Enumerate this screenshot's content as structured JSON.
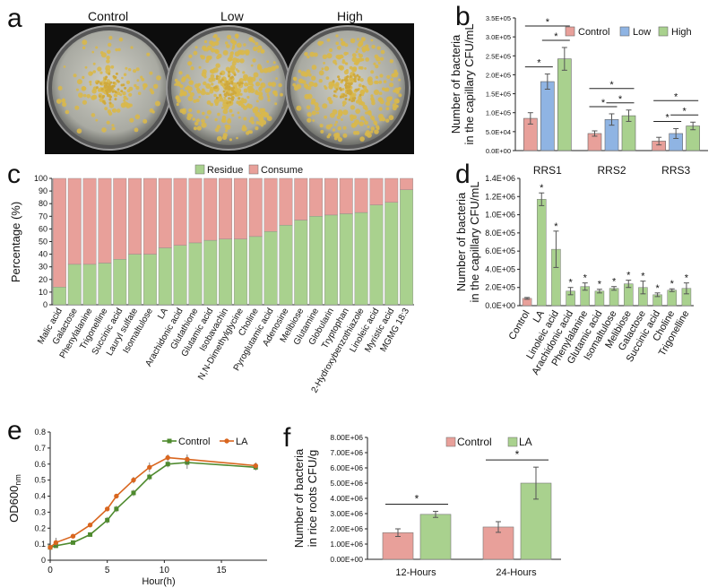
{
  "panels": {
    "a": "a",
    "b": "b",
    "c": "c",
    "d": "d",
    "e": "e",
    "f": "f"
  },
  "plates": {
    "labels": [
      "Control",
      "Low",
      "High"
    ]
  },
  "colors": {
    "control": "#e8a09a",
    "low": "#8fb4e3",
    "high": "#a9d18e",
    "residue": "#a9d18e",
    "consume": "#e8a09a",
    "line_control": "#4e8a2e",
    "line_la": "#d9661f"
  },
  "chart_data": [
    {
      "id": "b",
      "type": "bar",
      "ylabel": "Number of bacteria\nin the capillary CFU/mL",
      "categories": [
        "RRS1",
        "RRS2",
        "RRS3"
      ],
      "yticks": [
        "0.0E+00",
        "5.0E+04",
        "1.0E+05",
        "1.5E+05",
        "2.0E+05",
        "2.5E+05",
        "3.0E+05",
        "3.5E+05"
      ],
      "ylim": [
        0,
        350000
      ],
      "legend_position": "top-right",
      "series": [
        {
          "name": "Control",
          "values": [
            85000,
            45000,
            25000
          ],
          "errors": [
            15000,
            7000,
            10000
          ]
        },
        {
          "name": "Low",
          "values": [
            182000,
            82000,
            45000
          ],
          "errors": [
            20000,
            15000,
            13000
          ]
        },
        {
          "name": "High",
          "values": [
            242000,
            92000,
            65000
          ],
          "errors": [
            30000,
            15000,
            10000
          ]
        }
      ],
      "annotations": [
        "*",
        "*",
        "*",
        "*",
        "*",
        "*",
        "*",
        "*",
        "*"
      ]
    },
    {
      "id": "c",
      "type": "bar",
      "stacked": true,
      "ylabel": "Percentage (%)",
      "ylim": [
        0,
        100
      ],
      "yticks": [
        "0",
        "10",
        "20",
        "30",
        "40",
        "50",
        "60",
        "70",
        "80",
        "90",
        "100"
      ],
      "legend_position": "top",
      "categories": [
        "Malic acid",
        "Galactose",
        "Phenylalanine",
        "Trigonelline",
        "Succinic acid",
        "Lauryl sulfate",
        "Isomaltulose",
        "LA",
        "Arachidonic acid",
        "Glutathione",
        "Glutamic acid",
        "Isobavachin",
        "N,N-Dimethylglycine",
        "Choline",
        "Pyroglutamic acid",
        "Adenosine",
        "Melibiose",
        "Glutamine",
        "Globularin",
        "Tryptophan",
        "2-Hydroxybenzothiazole",
        "Linoleic acid",
        "Myristic acid",
        "MGMG 18:3"
      ],
      "series": [
        {
          "name": "Residue",
          "values": [
            14,
            32,
            32,
            33,
            36,
            40,
            40,
            45,
            47,
            49,
            51,
            52,
            52,
            54,
            58,
            63,
            67,
            70,
            71,
            72,
            73,
            79,
            81,
            91
          ]
        },
        {
          "name": "Consume",
          "values": [
            86,
            68,
            68,
            67,
            64,
            60,
            60,
            55,
            53,
            51,
            49,
            48,
            48,
            46,
            42,
            37,
            33,
            30,
            29,
            28,
            27,
            21,
            19,
            9
          ]
        }
      ]
    },
    {
      "id": "d",
      "type": "bar",
      "ylabel": "Number of bacteria\nin the capillary CFU/mL",
      "ylim": [
        0,
        1400000
      ],
      "yticks": [
        "0.0E+00",
        "2.0E+05",
        "4.0E+05",
        "6.0E+05",
        "8.0E+05",
        "1.0E+06",
        "1.2E+06",
        "1.4E+06"
      ],
      "categories": [
        "Control",
        "LA",
        "Linoleic acid",
        "Arachidonic acid",
        "Phenylalanine",
        "Glutamic acid",
        "Isomaltulose",
        "Melibiose",
        "Galactose",
        "Succinic acid",
        "Choline",
        "Trigonelline"
      ],
      "values": [
        80000,
        1170000,
        620000,
        160000,
        210000,
        160000,
        190000,
        240000,
        200000,
        120000,
        170000,
        190000
      ],
      "errors": [
        10000,
        70000,
        200000,
        40000,
        40000,
        20000,
        20000,
        40000,
        70000,
        20000,
        15000,
        60000
      ],
      "annotations": [
        "",
        "*",
        "*",
        "*",
        "*",
        "*",
        "*",
        "*",
        "*",
        "*",
        "*",
        "*"
      ]
    },
    {
      "id": "e",
      "type": "line",
      "xlabel": "Hour(h)",
      "ylabel": "OD600nm",
      "ylabel_main": "OD600",
      "ylabel_sub": "nm",
      "xlim": [
        0,
        19
      ],
      "ylim": [
        0,
        0.8
      ],
      "xticks": [
        "0",
        "5",
        "10",
        "15"
      ],
      "yticks": [
        "0",
        "0.1",
        "0.2",
        "0.3",
        "0.4",
        "0.5",
        "0.6",
        "0.7",
        "0.8"
      ],
      "legend_position": "top-right",
      "x": [
        0,
        0.5,
        2,
        3.5,
        5,
        5.8,
        7.3,
        8.7,
        10.3,
        12,
        18
      ],
      "series": [
        {
          "name": "Control",
          "values": [
            0.08,
            0.09,
            0.11,
            0.16,
            0.25,
            0.32,
            0.42,
            0.52,
            0.6,
            0.61,
            0.58
          ],
          "errors": [
            0.01,
            0.01,
            0.01,
            0.01,
            0.02,
            0.02,
            0.02,
            0.02,
            0.02,
            0.04,
            0.02
          ]
        },
        {
          "name": "LA",
          "values": [
            0.08,
            0.11,
            0.15,
            0.22,
            0.32,
            0.4,
            0.5,
            0.58,
            0.64,
            0.63,
            0.59
          ],
          "errors": [
            0.01,
            0.03,
            0.01,
            0.01,
            0.01,
            0.01,
            0.02,
            0.03,
            0.02,
            0.03,
            0.02
          ]
        }
      ]
    },
    {
      "id": "f",
      "type": "bar",
      "ylabel": "Number of bacteria\nin rice roots CFU/g",
      "ylim": [
        0,
        8000000
      ],
      "yticks": [
        "0.00E+00",
        "1.00E+06",
        "2.00E+06",
        "3.00E+06",
        "4.00E+06",
        "5.00E+06",
        "6.00E+06",
        "7.00E+06",
        "8.00E+06"
      ],
      "categories": [
        "12-Hours",
        "24-Hours"
      ],
      "legend_position": "top",
      "series": [
        {
          "name": "Control",
          "values": [
            1750000,
            2120000
          ],
          "errors": [
            250000,
            350000
          ]
        },
        {
          "name": "LA",
          "values": [
            2950000,
            5000000
          ],
          "errors": [
            200000,
            1050000
          ]
        }
      ],
      "annotations": [
        "*",
        "*"
      ]
    }
  ]
}
